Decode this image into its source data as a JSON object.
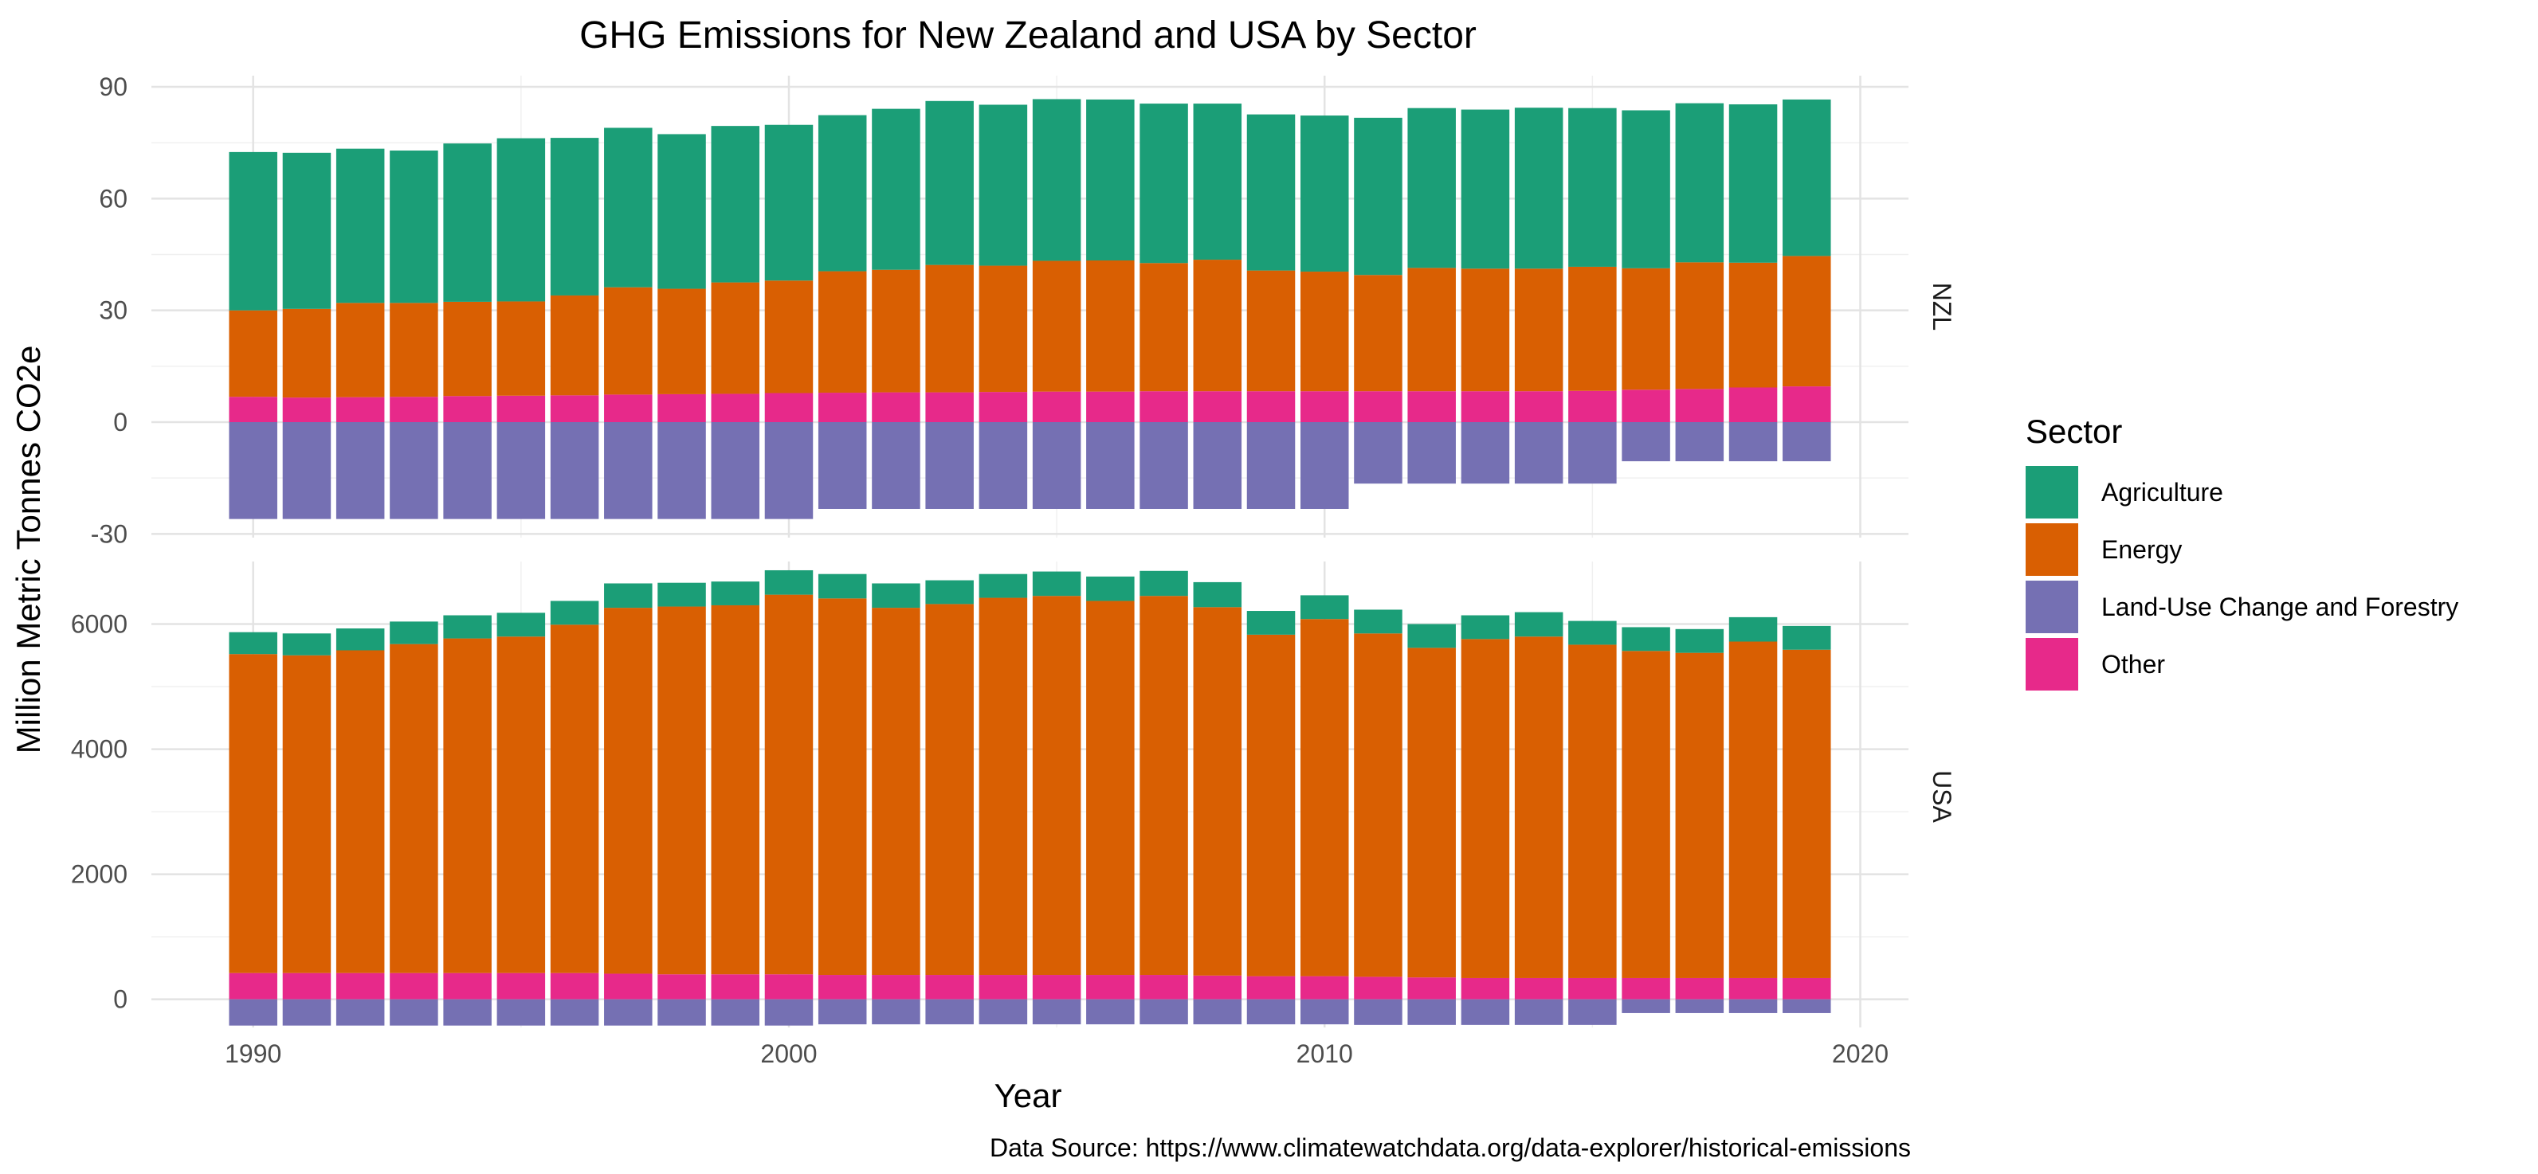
{
  "chart_data": {
    "type": "bar",
    "stacked": true,
    "title": "GHG Emissions for New Zealand and USA by Sector",
    "xlabel": "Year",
    "ylabel": "Million Metric Tonnes CO2e",
    "caption": "Data Source: https://www.climatewatchdata.org/data-explorer/historical-emissions",
    "legend": {
      "title": "Sector",
      "position": "right",
      "entries": [
        {
          "name": "Agriculture",
          "color": "#1b9e77"
        },
        {
          "name": "Energy",
          "color": "#d95f02"
        },
        {
          "name": "Land-Use Change and Forestry",
          "color": "#7570b3"
        },
        {
          "name": "Other",
          "color": "#e7298a"
        }
      ]
    },
    "x": [
      1990,
      1991,
      1992,
      1993,
      1994,
      1995,
      1996,
      1997,
      1998,
      1999,
      2000,
      2001,
      2002,
      2003,
      2004,
      2005,
      2006,
      2007,
      2008,
      2009,
      2010,
      2011,
      2012,
      2013,
      2014,
      2015,
      2016,
      2017,
      2018,
      2019
    ],
    "xlim": [
      1988.1,
      2020.9
    ],
    "x_ticks": [
      1990,
      2000,
      2010,
      2020
    ],
    "x_tick_labels": [
      "1990",
      "2000",
      "2010",
      "2020"
    ],
    "panels": [
      {
        "label": "NZL",
        "ylim": [
          -31,
          93
        ],
        "y_ticks": [
          -30,
          0,
          30,
          60,
          90
        ],
        "y_tick_labels": [
          "-30",
          "0",
          "30",
          "60",
          "90"
        ],
        "series": [
          {
            "name": "Other",
            "values": [
              6.8,
              6.6,
              6.7,
              6.8,
              7.0,
              7.1,
              7.2,
              7.4,
              7.5,
              7.6,
              7.8,
              7.9,
              8.0,
              8.0,
              8.1,
              8.2,
              8.2,
              8.3,
              8.3,
              8.3,
              8.3,
              8.3,
              8.3,
              8.3,
              8.3,
              8.4,
              8.7,
              8.9,
              9.3,
              9.6
            ]
          },
          {
            "name": "Energy",
            "values": [
              23.2,
              23.8,
              25.3,
              25.2,
              25.3,
              25.3,
              26.8,
              28.8,
              28.3,
              29.9,
              30.2,
              32.6,
              32.9,
              34.2,
              33.9,
              35.1,
              35.2,
              34.4,
              35.3,
              32.4,
              32.1,
              31.2,
              33.1,
              32.9,
              32.9,
              33.3,
              32.6,
              34.0,
              33.5,
              35.0
            ]
          },
          {
            "name": "Agriculture",
            "values": [
              42.5,
              41.9,
              41.4,
              40.9,
              42.5,
              43.8,
              42.3,
              42.8,
              41.5,
              42.0,
              41.8,
              41.9,
              43.2,
              44.0,
              43.2,
              43.4,
              43.2,
              42.8,
              41.9,
              41.9,
              41.9,
              42.2,
              42.9,
              42.7,
              43.2,
              42.6,
              42.4,
              42.7,
              42.5,
              42.0
            ]
          },
          {
            "name": "Land-Use Change and Forestry",
            "values": [
              -26.0,
              -26.0,
              -26.0,
              -26.0,
              -26.0,
              -26.0,
              -26.0,
              -26.0,
              -26.0,
              -26.0,
              -26.0,
              -23.3,
              -23.3,
              -23.3,
              -23.3,
              -23.3,
              -23.3,
              -23.3,
              -23.3,
              -23.3,
              -23.3,
              -16.5,
              -16.5,
              -16.5,
              -16.5,
              -16.5,
              -10.5,
              -10.5,
              -10.5,
              -10.5
            ]
          }
        ]
      },
      {
        "label": "USA",
        "ylim": [
          -450,
          7000
        ],
        "y_ticks": [
          0,
          2000,
          4000,
          6000
        ],
        "y_tick_labels": [
          "0",
          "2000",
          "4000",
          "6000"
        ],
        "series": [
          {
            "name": "Other",
            "values": [
              420,
              420,
              420,
              420,
              420,
              420,
              420,
              410,
              400,
              400,
              400,
              390,
              390,
              390,
              390,
              390,
              390,
              390,
              380,
              370,
              370,
              360,
              350,
              340,
              340,
              340,
              340,
              340,
              340,
              340
            ]
          },
          {
            "name": "Energy",
            "values": [
              5100,
              5080,
              5160,
              5260,
              5350,
              5380,
              5570,
              5850,
              5880,
              5900,
              6070,
              6020,
              5870,
              5930,
              6030,
              6060,
              5980,
              6060,
              5890,
              5460,
              5710,
              5490,
              5270,
              5420,
              5460,
              5330,
              5230,
              5200,
              5380,
              5250
            ]
          },
          {
            "name": "Agriculture",
            "values": [
              350,
              350,
              350,
              360,
              370,
              380,
              380,
              390,
              380,
              380,
              390,
              390,
              390,
              380,
              380,
              390,
              390,
              400,
              400,
              380,
              380,
              380,
              380,
              380,
              390,
              380,
              380,
              380,
              390,
              380
            ]
          },
          {
            "name": "Land-Use Change and Forestry",
            "values": [
              -420,
              -420,
              -420,
              -420,
              -420,
              -420,
              -420,
              -420,
              -420,
              -420,
              -420,
              -400,
              -400,
              -400,
              -400,
              -400,
              -400,
              -400,
              -400,
              -400,
              -400,
              -410,
              -410,
              -410,
              -410,
              -410,
              -220,
              -220,
              -220,
              -220
            ]
          }
        ]
      }
    ]
  }
}
